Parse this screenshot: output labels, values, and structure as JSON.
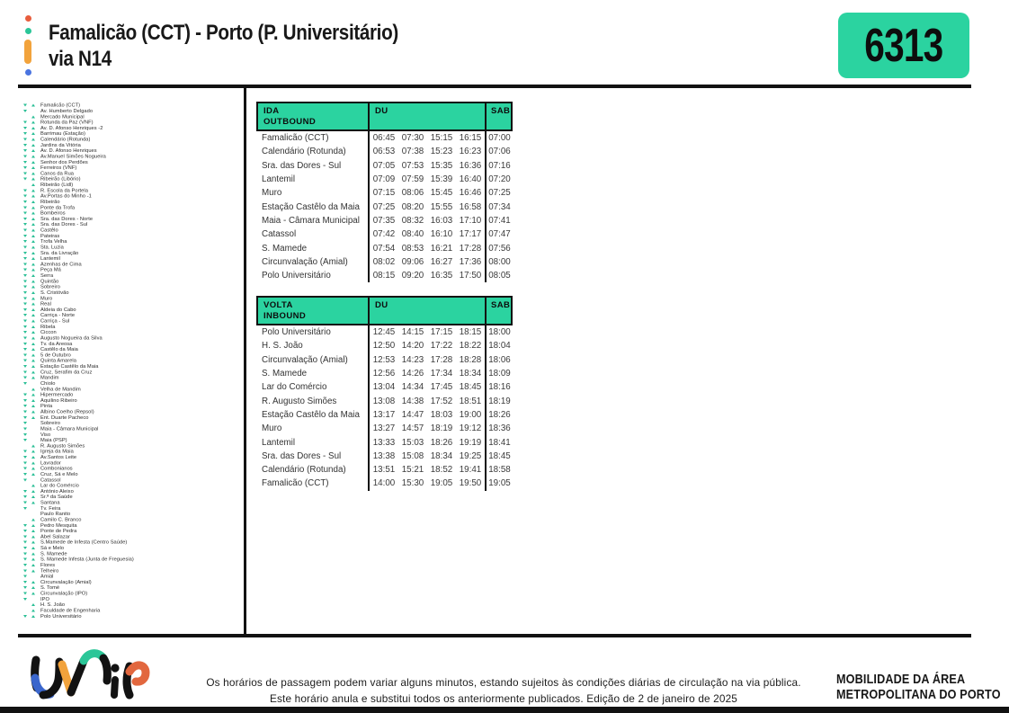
{
  "header": {
    "title_line1": "Famalicão (CCT) - Porto (P. Universitário)",
    "title_line2": "via N14",
    "route_number": "6313"
  },
  "colors": {
    "accent_green": "#2BD3A0",
    "triangle_green": "#2BBF96",
    "logo_blue": "#3A66CC",
    "logo_yellow": "#F2A33C",
    "logo_green": "#2BC698",
    "logo_orange": "#E2673E",
    "dot_red": "#E85D3D",
    "dot_blue": "#4A74E0"
  },
  "stops": {
    "items": [
      {
        "name": "Famalicão (CCT)",
        "down": true,
        "up": true
      },
      {
        "name": "Av. Humberto Delgado",
        "down": true,
        "up": false
      },
      {
        "name": "Mercado Municipal",
        "down": false,
        "up": true
      },
      {
        "name": "Rotunda da Paz (VNF)",
        "down": true,
        "up": true
      },
      {
        "name": "Av. D. Afonso Henriques -2",
        "down": true,
        "up": true
      },
      {
        "name": "Barrimau (Estação)",
        "down": true,
        "up": true
      },
      {
        "name": "Calendário (Rotunda)",
        "down": true,
        "up": true
      },
      {
        "name": "Jardins da Vitória",
        "down": true,
        "up": true
      },
      {
        "name": "Av. D. Afonso Henriques",
        "down": true,
        "up": true
      },
      {
        "name": "Av.Manuel Simões Nogueira",
        "down": true,
        "up": true
      },
      {
        "name": "Senhor dos Perdões",
        "down": true,
        "up": true
      },
      {
        "name": "Ferreiros (VNF)",
        "down": true,
        "up": true
      },
      {
        "name": "Canos da Rua",
        "down": true,
        "up": true
      },
      {
        "name": "Ribeirão (Libório)",
        "down": true,
        "up": true
      },
      {
        "name": "Ribeirão (Lidl)",
        "down": false,
        "up": true
      },
      {
        "name": "R. Escola da Portela",
        "down": true,
        "up": true
      },
      {
        "name": "Av.Portas do Minho -1",
        "down": true,
        "up": true
      },
      {
        "name": "Ribeirão",
        "down": true,
        "up": true
      },
      {
        "name": "Ponte da Trofa",
        "down": true,
        "up": true
      },
      {
        "name": "Bombeiros",
        "down": true,
        "up": true
      },
      {
        "name": "Sra. das Dores - Norte",
        "down": true,
        "up": true
      },
      {
        "name": "Sra. das Dores - Sul",
        "down": true,
        "up": true
      },
      {
        "name": "Castêlo",
        "down": true,
        "up": true
      },
      {
        "name": "Pateiras",
        "down": true,
        "up": true
      },
      {
        "name": "Trofa Velha",
        "down": true,
        "up": true
      },
      {
        "name": "Sta. Luzia",
        "down": true,
        "up": true
      },
      {
        "name": "Sra. da Livração",
        "down": true,
        "up": true
      },
      {
        "name": "Lantemil",
        "down": true,
        "up": true
      },
      {
        "name": "Azenhas de Cima",
        "down": true,
        "up": true
      },
      {
        "name": "Peça Má",
        "down": true,
        "up": true
      },
      {
        "name": "Serra",
        "down": true,
        "up": true
      },
      {
        "name": "Quintão",
        "down": true,
        "up": true
      },
      {
        "name": "Sobreiro",
        "down": true,
        "up": true
      },
      {
        "name": "S. Cristóvão",
        "down": true,
        "up": true
      },
      {
        "name": "Muro",
        "down": true,
        "up": true
      },
      {
        "name": "Real",
        "down": true,
        "up": true
      },
      {
        "name": "Aldeia do Cabo",
        "down": true,
        "up": true
      },
      {
        "name": "Carriça - Norte",
        "down": true,
        "up": true
      },
      {
        "name": "Carriça - Sul",
        "down": true,
        "up": true
      },
      {
        "name": "Ribela",
        "down": true,
        "up": true
      },
      {
        "name": "Ciccon",
        "down": true,
        "up": true
      },
      {
        "name": "Augusto Nogueira da Silva",
        "down": true,
        "up": true
      },
      {
        "name": "Tv. da Areosa",
        "down": true,
        "up": true
      },
      {
        "name": "Castêlo da Maia",
        "down": true,
        "up": true
      },
      {
        "name": "5 de Outubro",
        "down": true,
        "up": true
      },
      {
        "name": "Quinta Amarela",
        "down": true,
        "up": true
      },
      {
        "name": "Estação Castêlo da Maia",
        "down": true,
        "up": true
      },
      {
        "name": "Cruz, Serafim da Cruz",
        "down": true,
        "up": true
      },
      {
        "name": "Mandim",
        "down": true,
        "up": true
      },
      {
        "name": "Chiolo",
        "down": true,
        "up": false
      },
      {
        "name": "Velha de Mandim",
        "down": false,
        "up": true
      },
      {
        "name": "Hipermercado",
        "down": true,
        "up": true
      },
      {
        "name": "Aquilino Ribeiro",
        "down": true,
        "up": true
      },
      {
        "name": "Pinta",
        "down": true,
        "up": true
      },
      {
        "name": "Albino Coelho (Repsol)",
        "down": true,
        "up": true
      },
      {
        "name": "Ent. Duarte Pacheco",
        "down": true,
        "up": true
      },
      {
        "name": "Sobreiro",
        "down": true,
        "up": false
      },
      {
        "name": "Maia - Câmara Municipal",
        "down": true,
        "up": false
      },
      {
        "name": "Viso",
        "down": true,
        "up": false
      },
      {
        "name": "Maia (PSP)",
        "down": true,
        "up": false
      },
      {
        "name": "R. Augusto Simões",
        "down": false,
        "up": true
      },
      {
        "name": "Igreja da Maia",
        "down": true,
        "up": true
      },
      {
        "name": "Av.Santos Leite",
        "down": true,
        "up": true
      },
      {
        "name": "Lavrador",
        "down": true,
        "up": true
      },
      {
        "name": "Combonianos",
        "down": true,
        "up": true
      },
      {
        "name": "Cruz, Sá e Melo",
        "down": true,
        "up": true
      },
      {
        "name": "Catassol",
        "down": true,
        "up": false
      },
      {
        "name": "Lar do Comércio",
        "down": false,
        "up": true
      },
      {
        "name": "António Aleixo",
        "down": true,
        "up": true
      },
      {
        "name": "Sr.ª da Saúde",
        "down": true,
        "up": true
      },
      {
        "name": "Santana",
        "down": true,
        "up": true
      },
      {
        "name": "Tv. Feira",
        "down": true,
        "up": false
      },
      {
        "name": "Paulo Ranito",
        "down": false,
        "up": false
      },
      {
        "name": "Camilo C. Branco",
        "down": false,
        "up": true
      },
      {
        "name": "Pedro Mesquita",
        "down": true,
        "up": true
      },
      {
        "name": "Ponte de Pedra",
        "down": true,
        "up": true
      },
      {
        "name": "Abel Salazar",
        "down": true,
        "up": true
      },
      {
        "name": "S.Mamede de Infesta (Centro Saúde)",
        "down": true,
        "up": true
      },
      {
        "name": "Sá e Melo",
        "down": true,
        "up": true
      },
      {
        "name": "S. Mamede",
        "down": true,
        "up": true
      },
      {
        "name": "S. Mamede Infesta (Junta de Freguesia)",
        "down": true,
        "up": true
      },
      {
        "name": "Flores",
        "down": true,
        "up": true
      },
      {
        "name": "Telheiro",
        "down": true,
        "up": true
      },
      {
        "name": "Amial",
        "down": true,
        "up": false
      },
      {
        "name": "Circunvalação (Amial)",
        "down": true,
        "up": true
      },
      {
        "name": "S. Tomé",
        "down": true,
        "up": true
      },
      {
        "name": "Circunvalação (IPO)",
        "down": true,
        "up": true
      },
      {
        "name": "IPO",
        "down": true,
        "up": false
      },
      {
        "name": "H. S. João",
        "down": false,
        "up": true
      },
      {
        "name": "Faculdade de Engenharia",
        "down": false,
        "up": true
      },
      {
        "name": "Polo Universitário",
        "down": true,
        "up": true
      }
    ]
  },
  "tables": [
    {
      "title": "IDA",
      "subtitle": "OUTBOUND",
      "du_label": "DU",
      "sab_label": "SAB",
      "rows": [
        {
          "stop": "Famalicão (CCT)",
          "du": [
            "06:45",
            "07:30",
            "15:15",
            "16:15"
          ],
          "sab": "07:00"
        },
        {
          "stop": "Calendário (Rotunda)",
          "du": [
            "06:53",
            "07:38",
            "15:23",
            "16:23"
          ],
          "sab": "07:06"
        },
        {
          "stop": "Sra. das Dores - Sul",
          "du": [
            "07:05",
            "07:53",
            "15:35",
            "16:36"
          ],
          "sab": "07:16"
        },
        {
          "stop": "Lantemil",
          "du": [
            "07:09",
            "07:59",
            "15:39",
            "16:40"
          ],
          "sab": "07:20"
        },
        {
          "stop": "Muro",
          "du": [
            "07:15",
            "08:06",
            "15:45",
            "16:46"
          ],
          "sab": "07:25"
        },
        {
          "stop": "Estação Castêlo da Maia",
          "du": [
            "07:25",
            "08:20",
            "15:55",
            "16:58"
          ],
          "sab": "07:34"
        },
        {
          "stop": "Maia - Câmara Municipal",
          "du": [
            "07:35",
            "08:32",
            "16:03",
            "17:10"
          ],
          "sab": "07:41"
        },
        {
          "stop": "Catassol",
          "du": [
            "07:42",
            "08:40",
            "16:10",
            "17:17"
          ],
          "sab": "07:47"
        },
        {
          "stop": "S. Mamede",
          "du": [
            "07:54",
            "08:53",
            "16:21",
            "17:28"
          ],
          "sab": "07:56"
        },
        {
          "stop": "Circunvalação (Amial)",
          "du": [
            "08:02",
            "09:06",
            "16:27",
            "17:36"
          ],
          "sab": "08:00"
        },
        {
          "stop": "Polo Universitário",
          "du": [
            "08:15",
            "09:20",
            "16:35",
            "17:50"
          ],
          "sab": "08:05"
        }
      ]
    },
    {
      "title": "VOLTA",
      "subtitle": "INBOUND",
      "du_label": "DU",
      "sab_label": "SAB",
      "rows": [
        {
          "stop": "Polo Universitário",
          "du": [
            "12:45",
            "14:15",
            "17:15",
            "18:15"
          ],
          "sab": "18:00"
        },
        {
          "stop": "H. S. João",
          "du": [
            "12:50",
            "14:20",
            "17:22",
            "18:22"
          ],
          "sab": "18:04"
        },
        {
          "stop": "Circunvalação (Amial)",
          "du": [
            "12:53",
            "14:23",
            "17:28",
            "18:28"
          ],
          "sab": "18:06"
        },
        {
          "stop": "S. Mamede",
          "du": [
            "12:56",
            "14:26",
            "17:34",
            "18:34"
          ],
          "sab": "18:09"
        },
        {
          "stop": "Lar do Comércio",
          "du": [
            "13:04",
            "14:34",
            "17:45",
            "18:45"
          ],
          "sab": "18:16"
        },
        {
          "stop": "R. Augusto Simões",
          "du": [
            "13:08",
            "14:38",
            "17:52",
            "18:51"
          ],
          "sab": "18:19"
        },
        {
          "stop": "Estação Castêlo da Maia",
          "du": [
            "13:17",
            "14:47",
            "18:03",
            "19:00"
          ],
          "sab": "18:26"
        },
        {
          "stop": "Muro",
          "du": [
            "13:27",
            "14:57",
            "18:19",
            "19:12"
          ],
          "sab": "18:36"
        },
        {
          "stop": "Lantemil",
          "du": [
            "13:33",
            "15:03",
            "18:26",
            "19:19"
          ],
          "sab": "18:41"
        },
        {
          "stop": "Sra. das Dores - Sul",
          "du": [
            "13:38",
            "15:08",
            "18:34",
            "19:25"
          ],
          "sab": "18:45"
        },
        {
          "stop": "Calendário (Rotunda)",
          "du": [
            "13:51",
            "15:21",
            "18:52",
            "19:41"
          ],
          "sab": "18:58"
        },
        {
          "stop": "Famalicão (CCT)",
          "du": [
            "14:00",
            "15:30",
            "19:05",
            "19:50"
          ],
          "sab": "19:05"
        }
      ]
    }
  ],
  "footer": {
    "note_line1": "Os horários de passagem podem variar alguns minutos, estando sujeitos às condições diárias de circulação na via pública.",
    "note_line2": "Este horário anula e substitui todos os anteriormente publicados. Edição de 2 de janeiro de 2025",
    "brand_line1": "MOBILIDADE DA ÁREA",
    "brand_line2": "METROPOLITANA DO PORTO",
    "logo_name": "UNIR"
  }
}
